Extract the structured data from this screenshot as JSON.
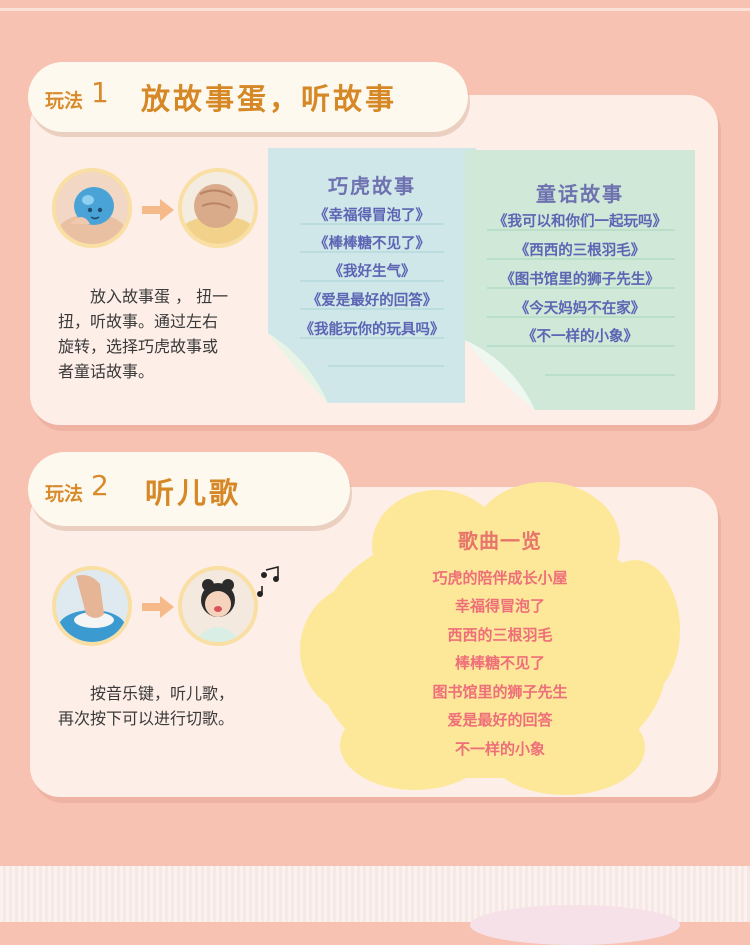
{
  "section1": {
    "label": "玩法",
    "number": "1",
    "title": "放故事蛋，听故事",
    "description_lines": [
      "放入故事蛋 ， 扭一",
      "扭，听故事。通过左右",
      "旋转，选择巧虎故事或",
      "者童话故事。"
    ],
    "note_left": {
      "title": "巧虎故事",
      "items": [
        "《幸福得冒泡了》",
        "《棒棒糖不见了》",
        "《我好生气》",
        "《爱是最好的回答》",
        "《我能玩你的玩具吗》"
      ]
    },
    "note_right": {
      "title": "童话故事",
      "items": [
        "《我可以和你们一起玩吗》",
        "《西西的三根羽毛》",
        "《图书馆里的狮子先生》",
        "《今天妈妈不在家》",
        "《不一样的小象》"
      ]
    }
  },
  "section2": {
    "label": "玩法",
    "number": "2",
    "title": "听儿歌",
    "description_lines": [
      "按音乐键，听儿歌，",
      "再次按下可以进行切歌。"
    ],
    "songs_title": "歌曲一览",
    "songs": [
      "巧虎的陪伴成长小屋",
      "幸福得冒泡了",
      "西西的三根羽毛",
      "棒棒糖不见了",
      "图书馆里的狮子先生",
      "爱是最好的回答",
      "不一样的小象"
    ]
  },
  "colors": {
    "background": "#f7c2b1",
    "panel": "#fdeee7",
    "tab": "#fdf9ee",
    "title_orange": "#d68726",
    "note_blue": "#cfe7e9",
    "note_green": "#cfe8d8",
    "cloud_yellow": "#fde89a",
    "song_pink": "#ee6f79",
    "arrow_orange": "#f6b98a"
  },
  "icons": [
    "arrow-right-icon",
    "music-notes-icon"
  ]
}
